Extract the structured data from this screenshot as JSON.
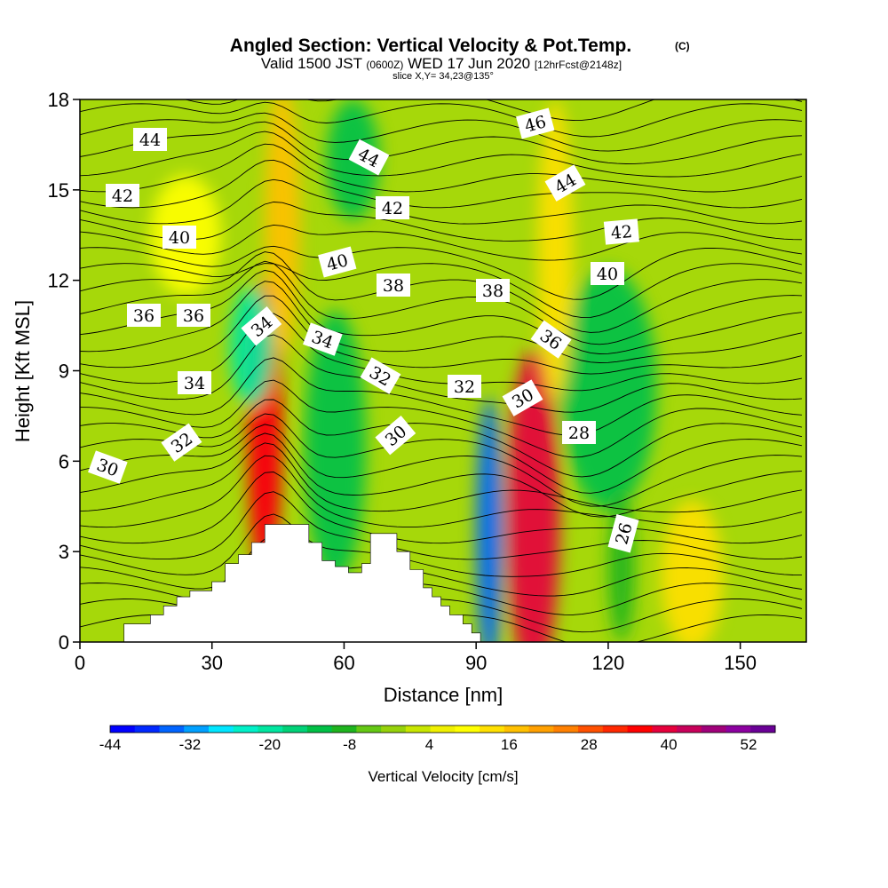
{
  "chart_data": {
    "type": "heatmap",
    "title": "Angled Section: Vertical Velocity & Pot.Temp.",
    "title_mark": "(C)",
    "subtitle_parts": [
      "Valid 1500 JST ",
      "(0600Z)",
      " WED 17 Jun 2020 ",
      "[12hrFcst@2148z]"
    ],
    "slice": "slice X,Y= 34,23@135°",
    "xlabel": "Distance [nm]",
    "ylabel": "Height [Kft MSL]",
    "xlim": [
      0,
      165
    ],
    "ylim": [
      0,
      18
    ],
    "x_ticks": [
      "0",
      "30",
      "60",
      "90",
      "120",
      "150"
    ],
    "y_ticks": [
      "0",
      "3",
      "6",
      "9",
      "12",
      "15",
      "18"
    ],
    "colorbar": {
      "label": "Vertical Velocity [cm/s]",
      "tick_labels": [
        "-44",
        "-32",
        "-20",
        "-8",
        "4",
        "16",
        "28",
        "40",
        "52"
      ],
      "colors": [
        "#0000ff",
        "#0028ff",
        "#0064ff",
        "#00a0ff",
        "#00e6ff",
        "#00f0c8",
        "#00e6a0",
        "#00d278",
        "#00c046",
        "#1eb41e",
        "#64c814",
        "#96d20a",
        "#c8e600",
        "#f0f000",
        "#ffff00",
        "#ffe000",
        "#ffc000",
        "#ffa000",
        "#ff8000",
        "#ff5000",
        "#ff2800",
        "#ff0000",
        "#e6003c",
        "#c8005a",
        "#a0007a",
        "#8c00a0",
        "#6a0096"
      ]
    },
    "terrain": [
      [
        0,
        0
      ],
      [
        10,
        0
      ],
      [
        10,
        0.6
      ],
      [
        16,
        0.6
      ],
      [
        16,
        0.9
      ],
      [
        19,
        0.9
      ],
      [
        19,
        1.2
      ],
      [
        22,
        1.2
      ],
      [
        22,
        1.5
      ],
      [
        25,
        1.5
      ],
      [
        25,
        1.7
      ],
      [
        30,
        1.7
      ],
      [
        30,
        2.0
      ],
      [
        33,
        2.0
      ],
      [
        33,
        2.6
      ],
      [
        36,
        2.6
      ],
      [
        36,
        2.9
      ],
      [
        39,
        2.9
      ],
      [
        39,
        3.3
      ],
      [
        42,
        3.3
      ],
      [
        42,
        3.9
      ],
      [
        52,
        3.9
      ],
      [
        52,
        3.3
      ],
      [
        55,
        3.3
      ],
      [
        55,
        2.7
      ],
      [
        58,
        2.7
      ],
      [
        58,
        2.5
      ],
      [
        61,
        2.5
      ],
      [
        61,
        2.3
      ],
      [
        64,
        2.3
      ],
      [
        64,
        2.6
      ],
      [
        66,
        2.6
      ],
      [
        66,
        3.6
      ],
      [
        72,
        3.6
      ],
      [
        72,
        3.0
      ],
      [
        75,
        3.0
      ],
      [
        75,
        2.4
      ],
      [
        78,
        2.4
      ],
      [
        78,
        1.8
      ],
      [
        80,
        1.8
      ],
      [
        80,
        1.5
      ],
      [
        82,
        1.5
      ],
      [
        82,
        1.2
      ],
      [
        84,
        1.2
      ],
      [
        84,
        0.9
      ],
      [
        87,
        0.9
      ],
      [
        87,
        0.6
      ],
      [
        89,
        0.6
      ],
      [
        89,
        0.3
      ],
      [
        91,
        0.3
      ],
      [
        91,
        0
      ],
      [
        165,
        0
      ]
    ],
    "vertical_velocity_cells": [
      {
        "x": 42,
        "y": 6.2,
        "w": 5,
        "h": 11,
        "v": 52
      },
      {
        "x": 42,
        "y": 7.0,
        "w": 8,
        "h": 10,
        "v": 36
      },
      {
        "x": 39,
        "y": 9.8,
        "w": 10,
        "h": 4,
        "v": -22
      },
      {
        "x": 58,
        "y": 6.5,
        "w": 14,
        "h": 9,
        "v": -14
      },
      {
        "x": 93,
        "y": 3.6,
        "w": 6,
        "h": 9,
        "v": -40
      },
      {
        "x": 103,
        "y": 4.2,
        "w": 12,
        "h": 11,
        "v": 40
      },
      {
        "x": 120,
        "y": 8.4,
        "w": 22,
        "h": 8,
        "v": -16
      },
      {
        "x": 123,
        "y": 2.5,
        "w": 6,
        "h": 5,
        "v": -10
      },
      {
        "x": 139,
        "y": 2.2,
        "w": 14,
        "h": 5,
        "v": 14
      },
      {
        "x": 62,
        "y": 16,
        "w": 12,
        "h": 4,
        "v": -16
      },
      {
        "x": 46,
        "y": 14,
        "w": 8,
        "h": 9,
        "v": 16
      },
      {
        "x": 108,
        "y": 13,
        "w": 8,
        "h": 10,
        "v": 14
      },
      {
        "x": 24,
        "y": 13.5,
        "w": 16,
        "h": 4,
        "v": 8
      }
    ],
    "theta_label_values": [
      "44",
      "42",
      "40",
      "36",
      "36",
      "34",
      "34",
      "32",
      "30",
      "44",
      "42",
      "40",
      "34",
      "32",
      "30",
      "38",
      "38",
      "32",
      "30",
      "46",
      "44",
      "42",
      "40",
      "36",
      "28",
      "26"
    ]
  }
}
